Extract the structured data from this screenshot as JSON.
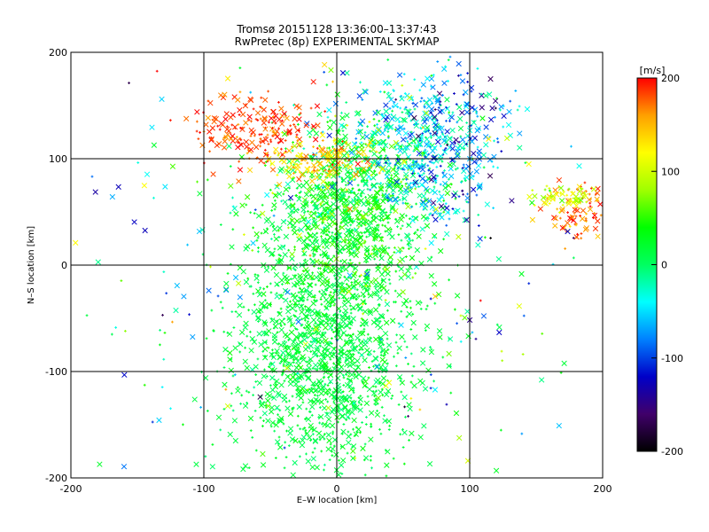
{
  "title_line1": "Tromsø 20151128 13:36:00–13:37:43",
  "title_line2": "RwPretec (8p) EXPERIMENTAL SKYMAP",
  "chart_data": {
    "type": "scatter",
    "xlabel": "E–W location [km]",
    "ylabel": "N–S location [km]",
    "xlim": [
      -200,
      200
    ],
    "ylim": [
      -200,
      200
    ],
    "xticks": [
      "-200",
      "-100",
      "0",
      "100",
      "200"
    ],
    "yticks": [
      "-200",
      "-100",
      "0",
      "100",
      "200"
    ],
    "grid": true,
    "markers": [
      "x",
      "+"
    ],
    "colorbar": {
      "label": "[m/s]",
      "range": [
        -200,
        200
      ],
      "ticks": [
        "200",
        "100",
        "0",
        "-100",
        "-200"
      ],
      "colormap": "rainbow",
      "stops": [
        "#000000",
        "#40006a",
        "#0000c8",
        "#0080ff",
        "#00ffff",
        "#00ff60",
        "#00ff00",
        "#a0ff00",
        "#ffff00",
        "#ffa000",
        "#ff0000"
      ]
    },
    "clusters": [
      {
        "name": "central-column-lower",
        "cx": -10,
        "cy": -80,
        "sx": 35,
        "sy": 60,
        "n": 1400,
        "v": 15,
        "vs": 12
      },
      {
        "name": "central-column-upper",
        "cx": 10,
        "cy": 50,
        "sx": 30,
        "sy": 40,
        "n": 900,
        "v": 30,
        "vs": 25
      },
      {
        "name": "north-center-cyan",
        "cx": 60,
        "cy": 110,
        "sx": 30,
        "sy": 35,
        "n": 450,
        "v": -40,
        "vs": 30
      },
      {
        "name": "north-east-blue",
        "cx": 85,
        "cy": 120,
        "sx": 22,
        "sy": 35,
        "n": 160,
        "v": -100,
        "vs": 40
      },
      {
        "name": "north-west-red",
        "cx": -60,
        "cy": 125,
        "sx": 25,
        "sy": 15,
        "n": 200,
        "v": 185,
        "vs": 15
      },
      {
        "name": "north-west-orange",
        "cx": -10,
        "cy": 100,
        "sx": 20,
        "sy": 12,
        "n": 160,
        "v": 140,
        "vs": 25
      },
      {
        "name": "east-edge-red",
        "cx": 183,
        "cy": 50,
        "sx": 12,
        "sy": 12,
        "n": 90,
        "v": 170,
        "vs": 25
      },
      {
        "name": "east-edge-yellow",
        "cx": 170,
        "cy": 65,
        "sx": 12,
        "sy": 6,
        "n": 60,
        "v": 100,
        "vs": 20
      },
      {
        "name": "background-scatter",
        "cx": 0,
        "cy": 0,
        "sx": 110,
        "sy": 110,
        "n": 350,
        "v": 0,
        "vs": 80
      }
    ]
  }
}
